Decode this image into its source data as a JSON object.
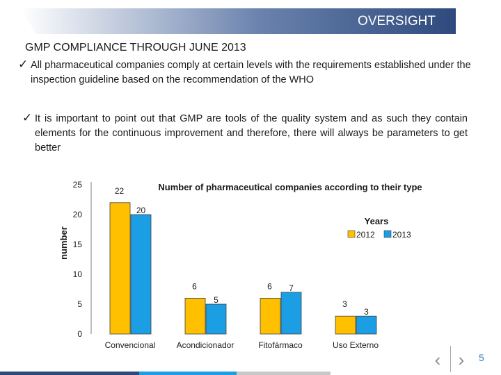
{
  "header": {
    "title": "OVERSIGHT",
    "banner_color": "#2e4a7d"
  },
  "subtitle": "GMP COMPLIANCE THROUGH JUNE 2013",
  "bullets": [
    "All pharmaceutical companies comply at certain levels with the requirements established under the inspection guideline based on the recommendation of the WHO",
    "It is important to point out that GMP are tools of the quality system and as such they contain elements for the continuous improvement and therefore, there will always be parameters to get better"
  ],
  "chart_data": {
    "type": "bar",
    "title": "Number of pharmaceutical companies according to their type",
    "ylabel": "number",
    "xlabel": "",
    "categories": [
      "Convencional",
      "Acondicionador",
      "Fitofármaco",
      "Uso Externo"
    ],
    "series": [
      {
        "name": "2012",
        "values": [
          22,
          6,
          6,
          3
        ],
        "color": "#ffc000"
      },
      {
        "name": "2013",
        "values": [
          20,
          5,
          7,
          3
        ],
        "color": "#1b9ee3"
      }
    ],
    "ylim": [
      0,
      25
    ],
    "yticks": [
      0,
      5,
      10,
      15,
      20,
      25
    ],
    "legend_title": "Years",
    "legend_position": "top-right",
    "grid": false
  },
  "footer": {
    "page_number": "5",
    "prev_icon": "‹",
    "next_icon": "›",
    "bar_colors": [
      "#2e4a7d",
      "#1b9ee3",
      "#c8c8c8"
    ]
  }
}
